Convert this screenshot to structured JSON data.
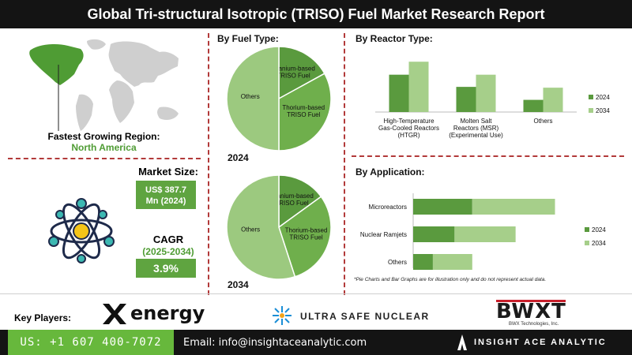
{
  "title": "Global Tri-structural Isotropic (TRISO) Fuel Market Research Report",
  "region": {
    "label": "Fastest Growing Region:",
    "value": "North America"
  },
  "market_size": {
    "label": "Market Size:",
    "value_line1": "US$ 387.7",
    "value_line2": "Mn (2024)"
  },
  "cagr": {
    "label": "CAGR",
    "period": "(2025-2034)",
    "value": "3.9%"
  },
  "fuel_type": {
    "title": "By Fuel Type:",
    "year_2024": "2024",
    "year_2034": "2034"
  },
  "reactor_type": {
    "title": "By  Reactor Type:"
  },
  "application": {
    "title": "By Application:"
  },
  "disclaimer": "*Pie Charts and Bar Graphs are for illustration only and do not represent actual data.",
  "key_players": {
    "label": "Key Players:",
    "x_energy": "energy",
    "usnc": "ULTRA SAFE NUCLEAR",
    "bwxt": "BWXT",
    "bwxt_sub": "BWX Technologies, Inc."
  },
  "footer": {
    "phone": "US: +1 607 400-7072",
    "email": "Email: info@insightaceanalytic.com",
    "brand": "INSIGHT ACE ANALYTIC"
  },
  "colors": {
    "dark_green": "#5a9a3e",
    "light_green": "#a6cf8a",
    "mid_green": "#7cb85a"
  },
  "chart_data": [
    {
      "type": "pie",
      "name": "fuel-2024",
      "labels": [
        "Uranium-based TRISO Fuel",
        "Thorium-based TRISO Fuel",
        "Others"
      ],
      "values": [
        17,
        33,
        50
      ],
      "colors": [
        "#5a9a3e",
        "#6faf4c",
        "#9cc97f"
      ]
    },
    {
      "type": "pie",
      "name": "fuel-2034",
      "labels": [
        "Uranium-based TRISO Fuel",
        "Thorium-based TRISO Fuel",
        "Others"
      ],
      "values": [
        15,
        30,
        55
      ],
      "colors": [
        "#5a9a3e",
        "#6faf4c",
        "#9cc97f"
      ]
    },
    {
      "type": "bar",
      "name": "reactor-type",
      "categories": [
        "High-Temperature Gas-Cooled Reactors (HTGR)",
        "Molten Salt Reactors (MSR) (Experimental Use)",
        "Others"
      ],
      "series": [
        {
          "name": "2024",
          "values": [
            46,
            31,
            15
          ]
        },
        {
          "name": "2034",
          "values": [
            62,
            46,
            30
          ]
        }
      ],
      "ylim": [
        0,
        70
      ]
    },
    {
      "type": "bar",
      "orientation": "horizontal",
      "name": "application",
      "categories": [
        "Microreactors",
        "Nuclear Ramjets",
        "Others"
      ],
      "series": [
        {
          "name": "2024",
          "values": [
            30,
            21,
            10
          ]
        },
        {
          "name": "2034",
          "values": [
            42,
            31,
            20
          ]
        }
      ],
      "stacked": true,
      "xlim": [
        0,
        75
      ]
    }
  ]
}
